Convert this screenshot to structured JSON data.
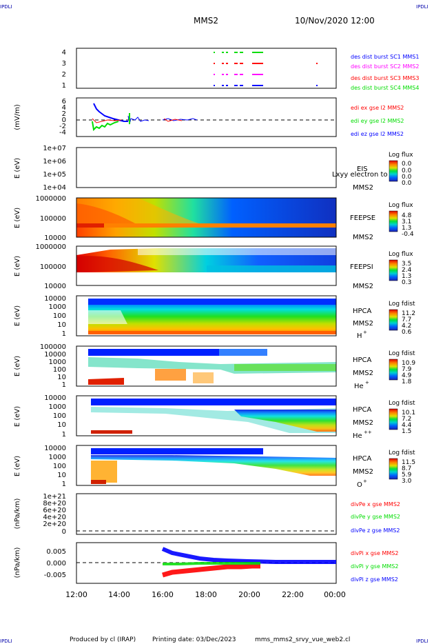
{
  "header": {
    "corner_label": "IPDLI",
    "mission": "MMS2",
    "datetime": "10/Nov/2020 12:00"
  },
  "footer": {
    "produced_by": "Produced by cl (IRAP)",
    "printing_date": "Printing date: 03/Dec/2023",
    "filename": "mms_mms2_srvy_vue_web2.cl"
  },
  "colors": {
    "blue": "#0000ff",
    "magenta": "#ff00ff",
    "red": "#ff0000",
    "green": "#00dd00"
  },
  "chart_data": [
    {
      "type": "line",
      "name": "burst_availability",
      "ylabel": "",
      "y_ticks": [
        "4",
        "3",
        "2",
        "1"
      ],
      "legend": [
        {
          "label": "des dist burst SC1 MMS1",
          "color": "#0000ff"
        },
        {
          "label": "des dist burst SC2 MMS2",
          "color": "#ff00ff"
        },
        {
          "label": "des dist burst SC3 MMS3",
          "color": "#ff0000"
        },
        {
          "label": "des dist burst SC4 MMS4",
          "color": "#00dd00"
        }
      ]
    },
    {
      "type": "line",
      "name": "edi_electric_field",
      "ylabel": "(mV/m)",
      "y_ticks": [
        "6",
        "4",
        "2",
        "0",
        "-2",
        "-4"
      ],
      "ylim": [
        -5,
        6
      ],
      "legend": [
        {
          "label": "edi ex gse l2 MMS2",
          "color": "#ff0000"
        },
        {
          "label": "edi ey gse l2 MMS2",
          "color": "#00dd00"
        },
        {
          "label": "edi ez gse l2 MMS2",
          "color": "#0000ff"
        }
      ]
    },
    {
      "type": "heatmap",
      "name": "eis",
      "ylabel": "E (eV)",
      "y_ticks": [
        "1e+07",
        "1e+06",
        "1e+05",
        "1e+04"
      ],
      "side_labels": [
        "EIS",
        "MMS2"
      ],
      "overlap_text": "Lxyy electron to",
      "colorbar_title": "Log flux",
      "colorbar_ticks": [
        "0.0",
        "0.0",
        "0.0",
        "0.0"
      ]
    },
    {
      "type": "heatmap",
      "name": "feeps_electron",
      "ylabel": "E (eV)",
      "y_ticks": [
        "1000000",
        "100000",
        "10000"
      ],
      "side_labels": [
        "FEEPSE",
        "MMS2"
      ],
      "colorbar_title": "Log flux",
      "colorbar_ticks": [
        "4.8",
        "3.1",
        "1.3",
        "-0.4"
      ]
    },
    {
      "type": "heatmap",
      "name": "feeps_ion",
      "ylabel": "E (eV)",
      "y_ticks": [
        "1000000",
        "100000",
        "10000"
      ],
      "side_labels": [
        "FEEPSI",
        "MMS2"
      ],
      "colorbar_title": "Log flux",
      "colorbar_ticks": [
        "3.5",
        "2.4",
        "1.3",
        "0.3"
      ]
    },
    {
      "type": "heatmap",
      "name": "hpca_h",
      "ylabel": "E (eV)",
      "y_ticks": [
        "10000",
        "1000",
        "100",
        "10",
        "1"
      ],
      "side_labels": [
        "HPCA",
        "MMS2"
      ],
      "species": "H",
      "species_charge": "+",
      "colorbar_title": "Log fdist",
      "colorbar_ticks": [
        "11.2",
        "7.7",
        "4.2",
        "0.6"
      ]
    },
    {
      "type": "heatmap",
      "name": "hpca_he",
      "ylabel": "E (eV)",
      "y_ticks": [
        "100000",
        "10000",
        "1000",
        "100",
        "10",
        "1"
      ],
      "side_labels": [
        "HPCA",
        "MMS2"
      ],
      "species": "He",
      "species_charge": "+",
      "colorbar_title": "Log fdist",
      "colorbar_ticks": [
        "10.9",
        "7.9",
        "4.9",
        "1.8"
      ]
    },
    {
      "type": "heatmap",
      "name": "hpca_he2",
      "ylabel": "E (eV)",
      "y_ticks": [
        "10000",
        "1000",
        "100",
        "10",
        "1"
      ],
      "side_labels": [
        "HPCA",
        "MMS2"
      ],
      "species": "He",
      "species_charge": "++",
      "colorbar_title": "Log fdist",
      "colorbar_ticks": [
        "10.1",
        "7.2",
        "4.4",
        "1.5"
      ]
    },
    {
      "type": "heatmap",
      "name": "hpca_o",
      "ylabel": "E (eV)",
      "y_ticks": [
        "10000",
        "1000",
        "100",
        "10",
        "1"
      ],
      "side_labels": [
        "HPCA",
        "MMS2"
      ],
      "species": "O",
      "species_charge": "+",
      "colorbar_title": "Log fdist",
      "colorbar_ticks": [
        "11.5",
        "8.7",
        "5.9",
        "3.0"
      ]
    },
    {
      "type": "line",
      "name": "div_pe",
      "ylabel": "(nPa/km)",
      "y_ticks": [
        "1e+21",
        "8e+20",
        "6e+20",
        "4e+20",
        "2e+20",
        "0"
      ],
      "legend": [
        {
          "label": "divPe x gse MMS2",
          "color": "#ff0000"
        },
        {
          "label": "divPe y gse MMS2",
          "color": "#00dd00"
        },
        {
          "label": "divPe z gse MMS2",
          "color": "#0000ff"
        }
      ]
    },
    {
      "type": "line",
      "name": "div_pi",
      "ylabel": "(nPa/km)",
      "y_ticks": [
        "0.005",
        "0.000",
        "-0.005"
      ],
      "ylim": [
        -0.008,
        0.008
      ],
      "legend": [
        {
          "label": "divPi x gse MMS2",
          "color": "#ff0000"
        },
        {
          "label": "divPi y gse MMS2",
          "color": "#00dd00"
        },
        {
          "label": "divPi z gse MMS2",
          "color": "#0000ff"
        }
      ]
    }
  ],
  "x_axis": {
    "tick_labels": [
      "12:00",
      "14:00",
      "16:00",
      "18:00",
      "20:00",
      "22:00",
      "00:00"
    ]
  }
}
